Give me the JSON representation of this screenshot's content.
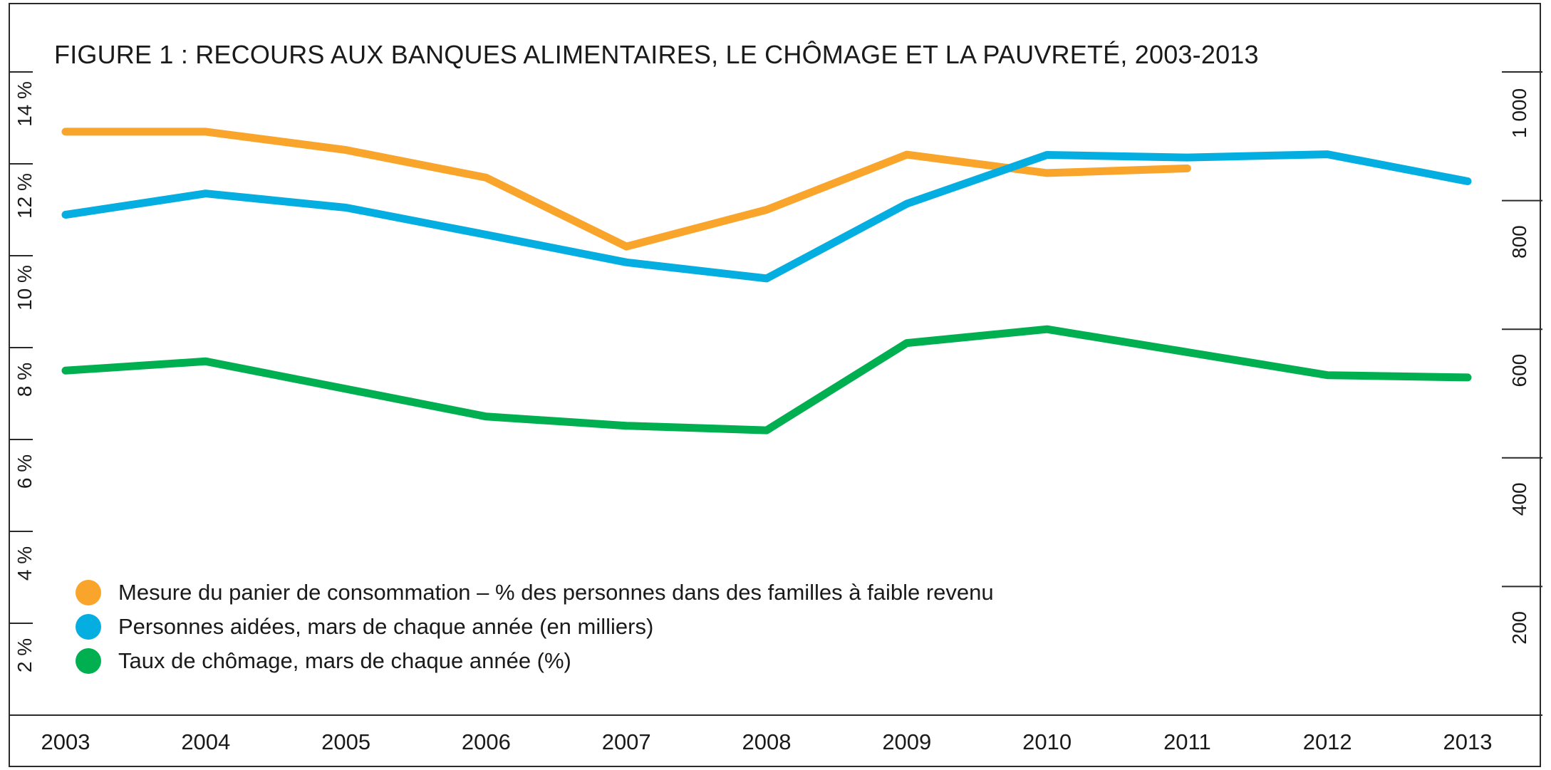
{
  "title": "FIGURE 1 : RECOURS AUX BANQUES ALIMENTAIRES, LE CHÔMAGE ET LA PAUVRETÉ, 2003-2013",
  "colors": {
    "mpc": "#f9a52b",
    "people": "#05aee0",
    "unemployment": "#00b050",
    "axis": "#2a2a2a"
  },
  "chart_data": {
    "type": "line",
    "title": "FIGURE 1 : RECOURS AUX BANQUES ALIMENTAIRES, LE CHÔMAGE ET LA PAUVRETÉ, 2003-2013",
    "x": [
      "2003",
      "2004",
      "2005",
      "2006",
      "2007",
      "2008",
      "2009",
      "2010",
      "2011",
      "2012",
      "2013"
    ],
    "y_left": {
      "min": 0,
      "max": 14,
      "ticks": [
        "2 %",
        "4 %",
        "6 %",
        "8 %",
        "10 %",
        "12 %",
        "14 %"
      ],
      "tick_values": [
        2,
        4,
        6,
        8,
        10,
        12,
        14
      ]
    },
    "y_right": {
      "min": 0,
      "max": 1000,
      "ticks": [
        "200",
        "400",
        "600",
        "800",
        "1 000"
      ],
      "tick_values": [
        200,
        400,
        600,
        800,
        1000
      ]
    },
    "grid": false,
    "legend_position": "bottom-left",
    "series": [
      {
        "key": "mpc",
        "name": "Mesure du panier de consommation – % des personnes dans des familles à faible revenu",
        "axis": "left",
        "values": [
          12.7,
          12.7,
          12.3,
          11.7,
          10.2,
          11.0,
          12.2,
          11.8,
          11.9,
          null,
          null
        ]
      },
      {
        "key": "people",
        "name": "Personnes aidées, mars de chaque année (en milliers)",
        "axis": "right",
        "values": [
          778,
          811,
          789,
          747,
          704,
          679,
          795,
          871,
          867,
          872,
          830
        ]
      },
      {
        "key": "unemployment",
        "name": "Taux de chômage, mars de chaque année (%)",
        "axis": "left",
        "values": [
          7.5,
          7.7,
          7.1,
          6.5,
          6.3,
          6.2,
          8.1,
          8.4,
          7.9,
          7.4,
          7.35
        ]
      }
    ]
  }
}
